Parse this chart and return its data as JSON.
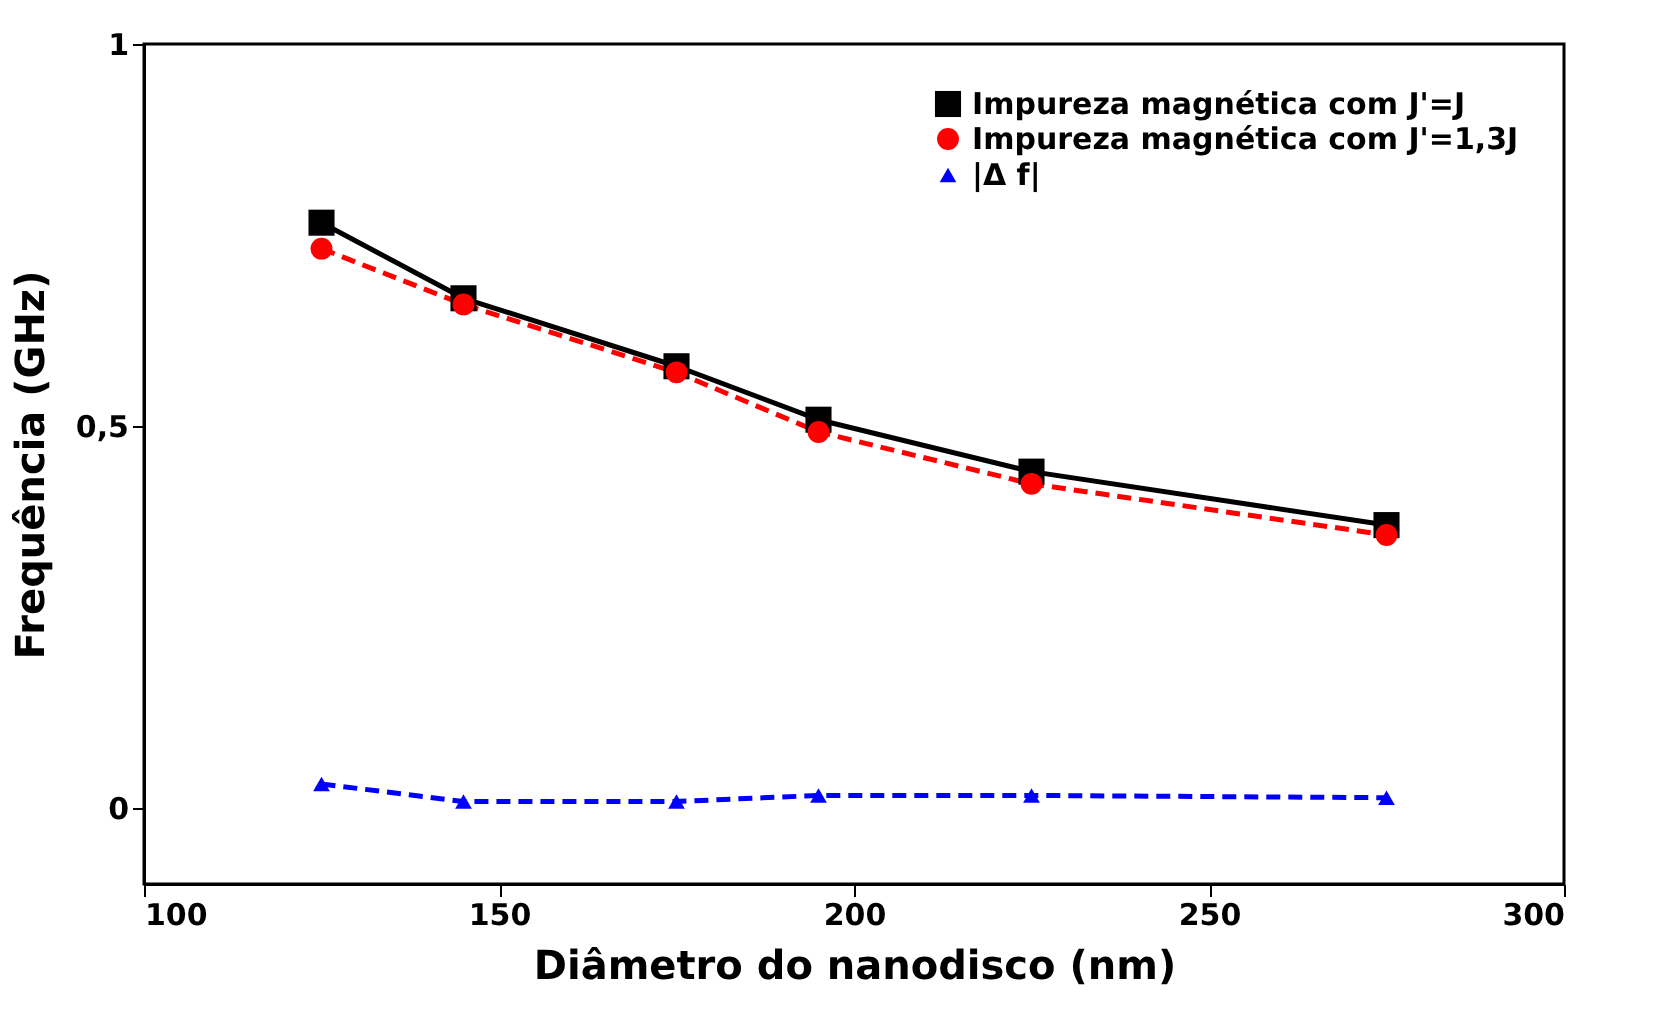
{
  "chart_data": {
    "type": "line",
    "xlabel": "Diâmetro do nanodisco (nm)",
    "ylabel": "Frequência (GHz)",
    "x": [
      125,
      145,
      175,
      195,
      225,
      275
    ],
    "series": [
      {
        "name": "Impureza magnética com J'=J",
        "color": "#000000",
        "marker": "square",
        "line_style": "solid",
        "values": [
          0.766,
          0.667,
          0.578,
          0.508,
          0.44,
          0.37
        ]
      },
      {
        "name": "Impureza magnética com J'=1,3J",
        "color": "#ff0000",
        "marker": "circle",
        "line_style": "dashed",
        "values": [
          0.732,
          0.659,
          0.57,
          0.492,
          0.424,
          0.357
        ]
      },
      {
        "name": "|Δ f|",
        "color": "#0000ff",
        "marker": "triangle",
        "line_style": "dashed",
        "values": [
          0.031,
          0.008,
          0.008,
          0.016,
          0.016,
          0.013
        ]
      }
    ],
    "xlim": [
      100,
      300
    ],
    "xticks": [
      100,
      150,
      200,
      250,
      300
    ],
    "ylim": [
      -0.1,
      1
    ],
    "yticks": [
      0,
      {
        "value": 0.5,
        "label": "0,5"
      },
      1
    ],
    "grid": false,
    "legend": "top right"
  }
}
